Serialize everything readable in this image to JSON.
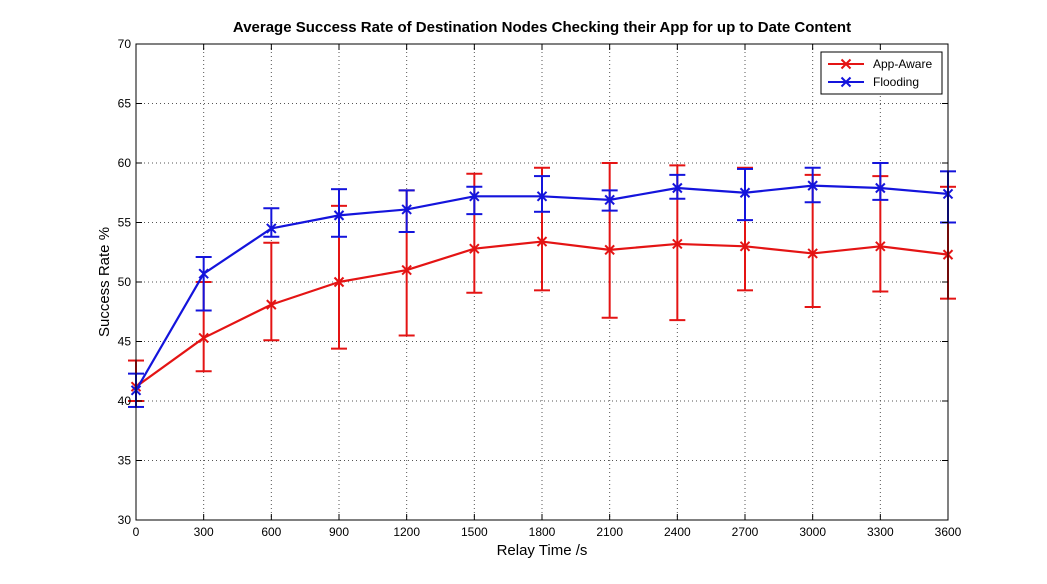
{
  "chart_data": {
    "type": "line",
    "title": "Average Success Rate of Destination Nodes Checking their App for up to Date Content",
    "xlabel": "Relay Time /s",
    "ylabel": "Success Rate %",
    "xlim": [
      0,
      3600
    ],
    "ylim": [
      30,
      70
    ],
    "x": [
      0,
      300,
      600,
      900,
      1200,
      1500,
      1800,
      2100,
      2400,
      2700,
      3000,
      3300,
      3600
    ],
    "xticks": [
      "0",
      "300",
      "600",
      "900",
      "1200",
      "1500",
      "1800",
      "2100",
      "2400",
      "2700",
      "3000",
      "3300",
      "3600"
    ],
    "yticks": [
      "30",
      "35",
      "40",
      "45",
      "50",
      "55",
      "60",
      "65",
      "70"
    ],
    "grid": true,
    "legend_position": "top-right",
    "series": [
      {
        "name": "App-Aware",
        "color": "#e41414",
        "marker": "x",
        "values": [
          41.2,
          45.3,
          48.1,
          50.0,
          51.0,
          52.8,
          53.4,
          52.7,
          53.2,
          53.0,
          52.4,
          53.0,
          52.3
        ],
        "err_low": [
          40.0,
          42.5,
          45.1,
          44.4,
          45.5,
          49.1,
          49.3,
          47.0,
          46.8,
          49.3,
          47.9,
          49.2,
          48.6
        ],
        "err_high": [
          43.4,
          50.0,
          53.3,
          56.4,
          57.7,
          59.1,
          59.6,
          60.0,
          59.8,
          59.6,
          59.0,
          58.9,
          58.0
        ]
      },
      {
        "name": "Flooding",
        "color": "#1414dc",
        "marker": "x",
        "values": [
          40.9,
          50.7,
          54.5,
          55.6,
          56.1,
          57.2,
          57.2,
          56.9,
          57.9,
          57.5,
          58.1,
          57.9,
          57.4
        ],
        "err_low": [
          39.5,
          47.6,
          53.8,
          53.8,
          54.2,
          55.7,
          55.9,
          56.0,
          57.0,
          55.2,
          56.7,
          56.9,
          55.0
        ],
        "err_high": [
          42.3,
          52.1,
          56.2,
          57.8,
          57.7,
          58.0,
          58.9,
          57.7,
          59.0,
          59.5,
          59.6,
          60.0,
          59.3
        ]
      }
    ]
  }
}
